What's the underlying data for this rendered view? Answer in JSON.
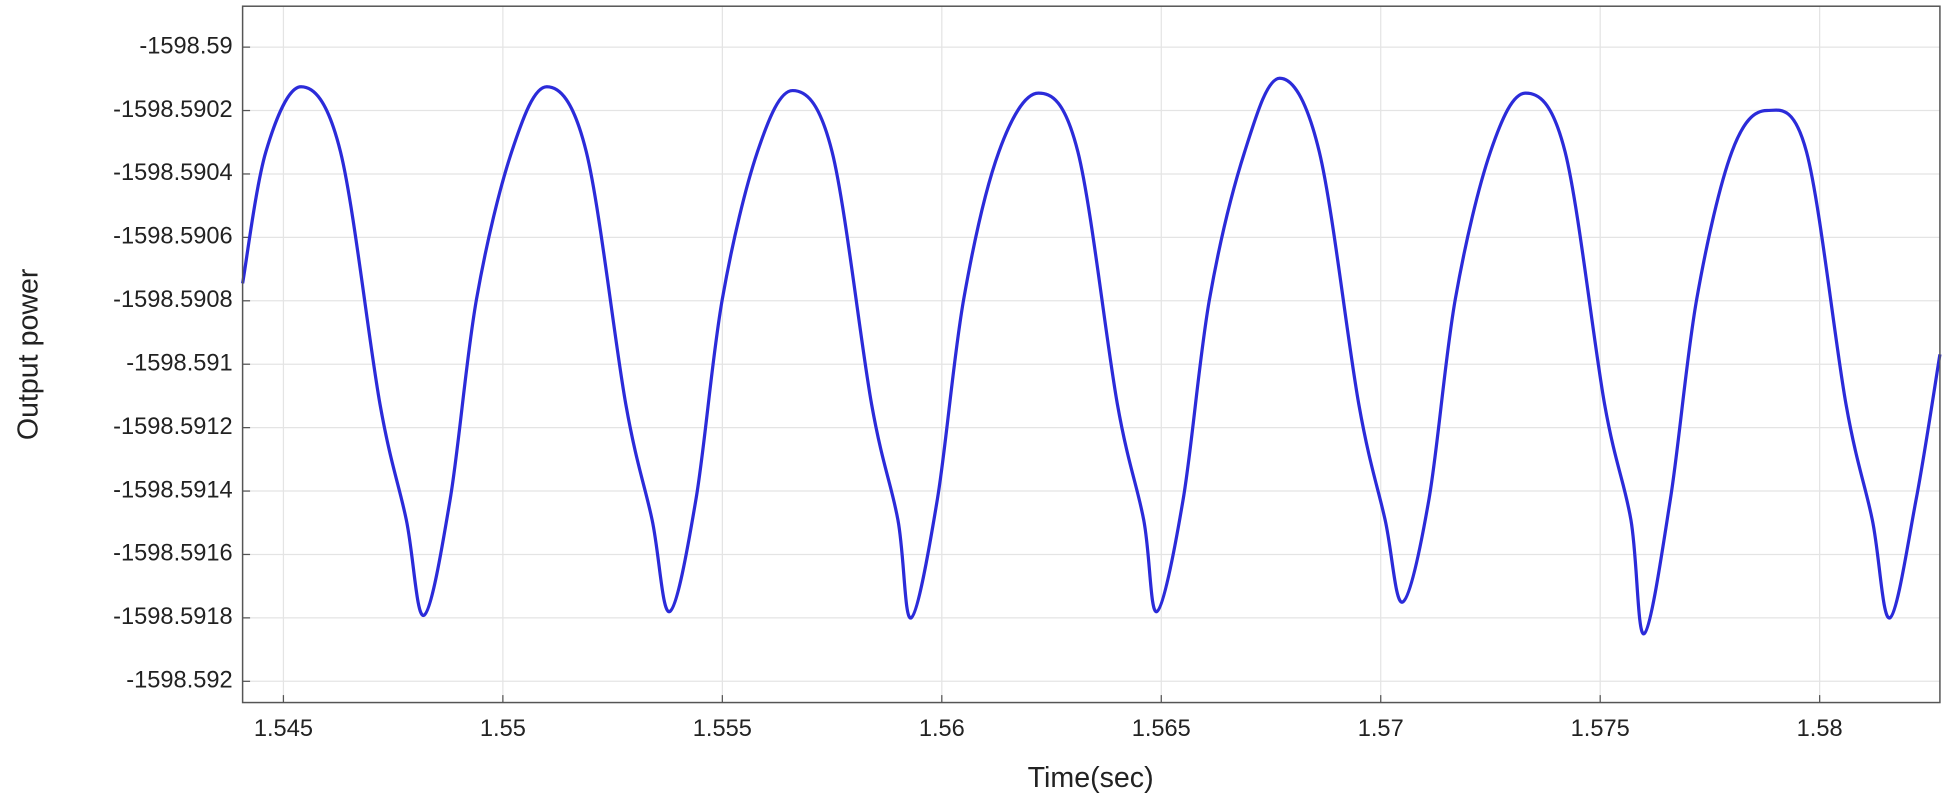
{
  "chart_data": {
    "type": "line",
    "x_label": "Time(sec)",
    "y_label": "Output power",
    "xlim": [
      1.54407,
      1.58274
    ],
    "ylim": [
      -1598.592067,
      -1598.589871
    ],
    "xticks": [
      1.545,
      1.55,
      1.555,
      1.56,
      1.565,
      1.57,
      1.575,
      1.58
    ],
    "yticks": [
      -1598.59,
      -1598.5902,
      -1598.5904,
      -1598.5906,
      -1598.5908,
      -1598.591,
      -1598.5912,
      -1598.5914,
      -1598.5916,
      -1598.5918,
      -1598.592
    ],
    "grid": true,
    "x": [
      1.54407,
      1.5446,
      1.5454,
      1.5463,
      1.5472,
      1.5478,
      1.5482,
      1.5488,
      1.5494,
      1.5502,
      1.551,
      1.5519,
      1.5528,
      1.5534,
      1.5538,
      1.5544,
      1.555,
      1.5558,
      1.5566,
      1.5575,
      1.5584,
      1.559,
      1.5593,
      1.5599,
      1.5605,
      1.5613,
      1.5622,
      1.5631,
      1.564,
      1.5646,
      1.5649,
      1.5655,
      1.5661,
      1.5669,
      1.5677,
      1.5686,
      1.5695,
      1.5701,
      1.5705,
      1.5711,
      1.5717,
      1.5725,
      1.5733,
      1.5742,
      1.5751,
      1.5757,
      1.576,
      1.5766,
      1.5772,
      1.578,
      1.5788,
      1.5797,
      1.5806,
      1.5812,
      1.5816,
      1.5822,
      1.58274
    ],
    "series": [
      {
        "color": "#2b2bd9",
        "values": [
          -1598.590745,
          -1598.59033,
          -1598.590125,
          -1598.59033,
          -1598.591126,
          -1598.591491,
          -1598.591792,
          -1598.591425,
          -1598.590794,
          -1598.59033,
          -1598.590125,
          -1598.59033,
          -1598.591126,
          -1598.591491,
          -1598.59178,
          -1598.591425,
          -1598.590794,
          -1598.59033,
          -1598.590137,
          -1598.59033,
          -1598.591126,
          -1598.591491,
          -1598.5918,
          -1598.591425,
          -1598.590794,
          -1598.59033,
          -1598.590145,
          -1598.59033,
          -1598.591126,
          -1598.591491,
          -1598.59178,
          -1598.591425,
          -1598.590794,
          -1598.59033,
          -1598.590098,
          -1598.59033,
          -1598.591126,
          -1598.591491,
          -1598.59175,
          -1598.591425,
          -1598.590794,
          -1598.59033,
          -1598.590145,
          -1598.59033,
          -1598.591126,
          -1598.591491,
          -1598.59185,
          -1598.591425,
          -1598.590794,
          -1598.59033,
          -1598.5902,
          -1598.59033,
          -1598.591126,
          -1598.591491,
          -1598.5918,
          -1598.591425,
          -1598.590969
        ]
      }
    ]
  }
}
